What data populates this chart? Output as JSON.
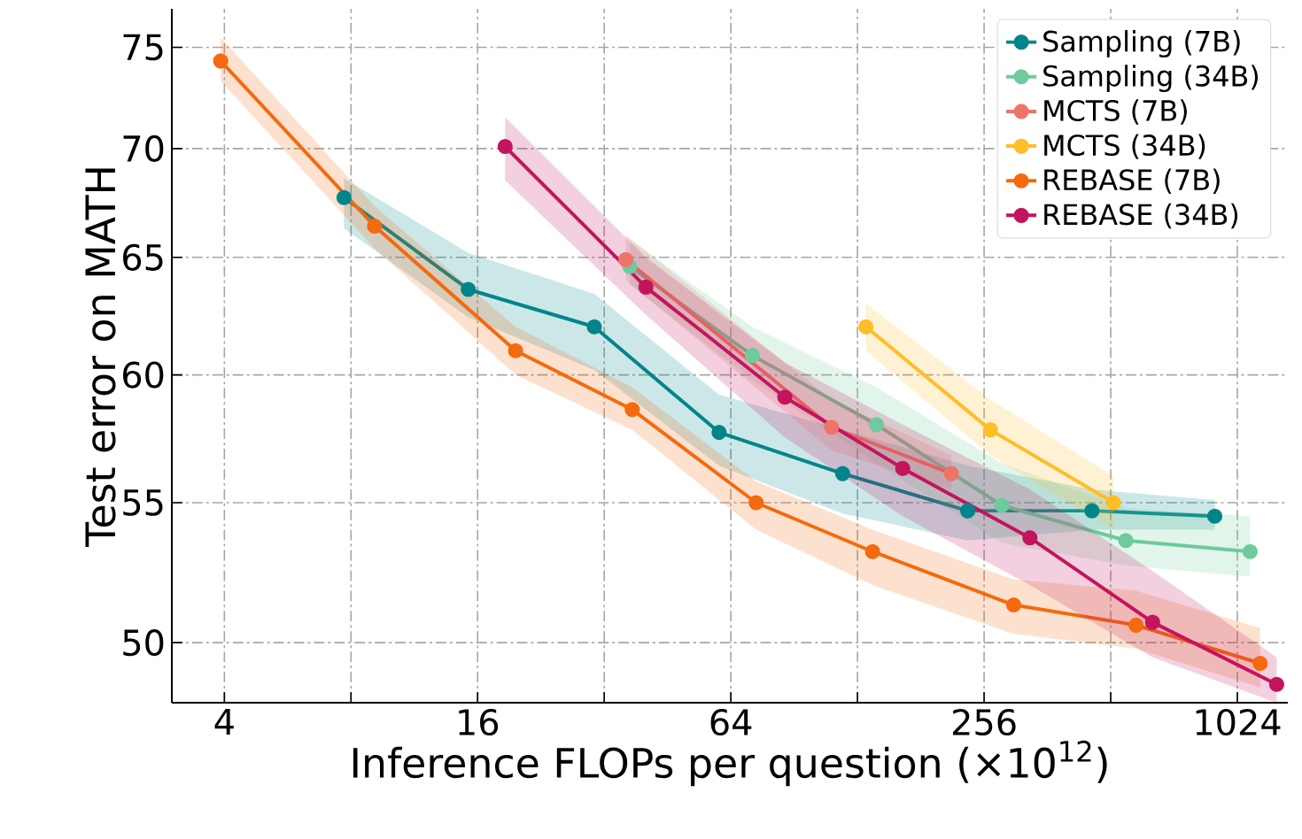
{
  "chart_data": {
    "type": "line",
    "xlabel": "Inference FLOPs per question (×10$^{12}$)",
    "ylabel": "Test error on MATH",
    "log": "xy",
    "xlim": [
      3,
      1350
    ],
    "ylim": [
      48,
      77
    ],
    "xticks": [
      4,
      {
        "value": 8,
        "label": null
      },
      16,
      {
        "value": 32,
        "label": null
      },
      64,
      {
        "value": 128,
        "label": null
      },
      256,
      {
        "value": 512,
        "label": null
      },
      1024
    ],
    "yticks": [
      50,
      55,
      60,
      65,
      70,
      75
    ],
    "grid": true,
    "legend": "top right",
    "marker": "circle",
    "line_style": "solid",
    "series": [
      {
        "name": "Sampling (7B)",
        "color": "#00858a",
        "x": [
          7.7,
          15.2,
          30.3,
          60,
          118,
          234,
          462,
          905
        ],
        "values": [
          67.7,
          63.6,
          62.0,
          57.7,
          56.1,
          54.7,
          54.7,
          54.5
        ],
        "lower": [
          66.3,
          62.4,
          60.2,
          56.4,
          54.6,
          53.6,
          54.0,
          54.0
        ],
        "upper": [
          68.6,
          65.2,
          63.4,
          59.2,
          57.8,
          56.4,
          55.5,
          55.1
        ]
      },
      {
        "name": "Sampling (34B)",
        "color": "#6dcb9c",
        "x": [
          36.8,
          72,
          142,
          282,
          556,
          1098
        ],
        "values": [
          64.6,
          60.8,
          58.0,
          54.9,
          53.6,
          53.2
        ],
        "lower": [
          63.8,
          59.8,
          56.5,
          53.5,
          52.7,
          52.3
        ],
        "upper": [
          65.8,
          62.0,
          59.5,
          56.5,
          54.8,
          54.5
        ]
      },
      {
        "name": "MCTS (7B)",
        "color": "#ef7468",
        "x": [
          36,
          111,
          214
        ],
        "values": [
          64.9,
          57.9,
          56.1
        ],
        "lower": [
          64.0,
          57.0,
          55.5
        ],
        "upper": [
          66.0,
          59.0,
          56.8
        ]
      },
      {
        "name": "MCTS (34B)",
        "color": "#ffbd27",
        "x": [
          134,
          265,
          520
        ],
        "values": [
          62.0,
          57.8,
          55.0
        ],
        "lower": [
          61.0,
          56.8,
          54.0
        ],
        "upper": [
          63.0,
          59.0,
          56.0
        ]
      },
      {
        "name": "REBASE (7B)",
        "color": "#f46a0e",
        "x": [
          3.92,
          9.1,
          19.7,
          37.3,
          73.5,
          139,
          301,
          588,
          1160
        ],
        "values": [
          74.3,
          66.4,
          61.0,
          58.6,
          55.0,
          53.2,
          51.3,
          50.6,
          49.3
        ],
        "lower": [
          73.3,
          65.4,
          60.0,
          57.8,
          54.0,
          52.0,
          50.3,
          49.8,
          48.5
        ],
        "upper": [
          75.5,
          67.3,
          62.0,
          59.5,
          55.8,
          54.0,
          52.2,
          51.8,
          50.5
        ]
      },
      {
        "name": "REBASE (34B)",
        "color": "#c4145e",
        "x": [
          18.6,
          40.2,
          86,
          164,
          329,
          644,
          1270
        ],
        "values": [
          70.1,
          63.7,
          59.1,
          56.3,
          53.7,
          50.7,
          48.6
        ],
        "lower": [
          68.5,
          62.5,
          57.5,
          54.5,
          52.0,
          49.5,
          48.0
        ],
        "upper": [
          71.5,
          65.0,
          60.5,
          58.0,
          55.5,
          52.5,
          49.5
        ]
      }
    ]
  }
}
